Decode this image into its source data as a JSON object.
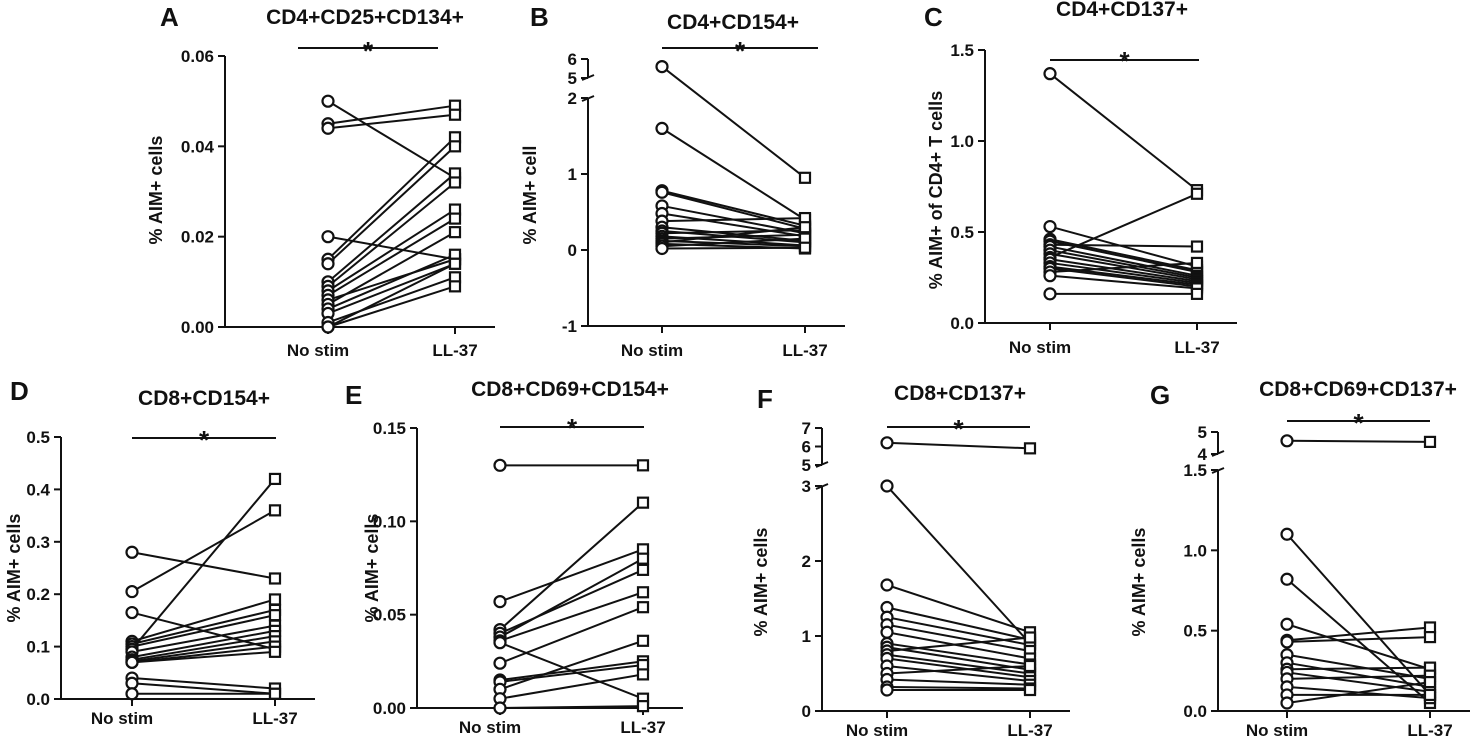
{
  "chart_data": [
    {
      "panel": "A",
      "type": "scatter",
      "title": "CD4+CD25+CD134+",
      "ylabel": "% AIM+ cells",
      "categories": [
        "No stim",
        "LL-37"
      ],
      "ylim": [
        0,
        0.06
      ],
      "yticks": [
        0,
        0.02,
        0.04,
        0.06
      ],
      "ytick_labels": [
        "0.00",
        "0.02",
        "0.04",
        "0.06"
      ],
      "significance": "*",
      "pairs": [
        [
          0.05,
          0.033
        ],
        [
          0.045,
          0.049
        ],
        [
          0.044,
          0.047
        ],
        [
          0.02,
          0.015
        ],
        [
          0.015,
          0.042
        ],
        [
          0.014,
          0.04
        ],
        [
          0.01,
          0.034
        ],
        [
          0.009,
          0.032
        ],
        [
          0.008,
          0.026
        ],
        [
          0.007,
          0.024
        ],
        [
          0.006,
          0.015
        ],
        [
          0.005,
          0.021
        ],
        [
          0.004,
          0.016
        ],
        [
          0.003,
          0.014
        ],
        [
          0.001,
          0.011
        ],
        [
          0.0,
          0.014
        ],
        [
          0.0,
          0.009
        ]
      ]
    },
    {
      "panel": "B",
      "type": "scatter",
      "title": "CD4+CD154+",
      "ylabel": "% AIM+ cell",
      "categories": [
        "No stim",
        "LL-37"
      ],
      "ylim": [
        -1,
        2
      ],
      "yticks": [
        -1,
        0,
        1,
        2
      ],
      "ytick_labels": [
        "-1",
        "0",
        "1",
        "2"
      ],
      "upper_axis": {
        "ylim": [
          5,
          6
        ],
        "yticks": [
          5,
          6
        ],
        "ytick_labels": [
          "5",
          "6"
        ]
      },
      "significance": "*",
      "pairs": [
        [
          5.6,
          0.95
        ],
        [
          1.6,
          0.4
        ],
        [
          0.78,
          0.32
        ],
        [
          0.76,
          0.28
        ],
        [
          0.58,
          0.22
        ],
        [
          0.48,
          0.18
        ],
        [
          0.38,
          0.42
        ],
        [
          0.3,
          0.12
        ],
        [
          0.25,
          0.1
        ],
        [
          0.22,
          0.26
        ],
        [
          0.18,
          0.06
        ],
        [
          0.15,
          0.2
        ],
        [
          0.12,
          0.05
        ],
        [
          0.1,
          0.3
        ],
        [
          0.08,
          0.02
        ],
        [
          0.05,
          0.15
        ],
        [
          0.02,
          0.03
        ]
      ]
    },
    {
      "panel": "C",
      "type": "scatter",
      "title": "CD4+CD137+",
      "ylabel": "% AIM+ of CD4+ T cells",
      "categories": [
        "No stim",
        "LL-37"
      ],
      "ylim": [
        0,
        1.5
      ],
      "yticks": [
        0,
        0.5,
        1.0,
        1.5
      ],
      "ytick_labels": [
        "0.0",
        "0.5",
        "1.0",
        "1.5"
      ],
      "significance": "*",
      "pairs": [
        [
          1.37,
          0.73
        ],
        [
          0.53,
          0.31
        ],
        [
          0.46,
          0.29
        ],
        [
          0.45,
          0.28
        ],
        [
          0.43,
          0.42
        ],
        [
          0.42,
          0.26
        ],
        [
          0.4,
          0.25
        ],
        [
          0.38,
          0.24
        ],
        [
          0.36,
          0.71
        ],
        [
          0.35,
          0.23
        ],
        [
          0.33,
          0.22
        ],
        [
          0.31,
          0.21
        ],
        [
          0.3,
          0.2
        ],
        [
          0.28,
          0.33
        ],
        [
          0.26,
          0.19
        ],
        [
          0.16,
          0.16
        ]
      ]
    },
    {
      "panel": "D",
      "type": "scatter",
      "title": "CD8+CD154+",
      "ylabel": "% AIM+ cells",
      "categories": [
        "No stim",
        "LL-37"
      ],
      "ylim": [
        0,
        0.5
      ],
      "yticks": [
        0,
        0.1,
        0.2,
        0.3,
        0.4,
        0.5
      ],
      "ytick_labels": [
        "0.0",
        "0.1",
        "0.2",
        "0.3",
        "0.4",
        "0.5"
      ],
      "significance": "*",
      "pairs": [
        [
          0.28,
          0.23
        ],
        [
          0.205,
          0.36
        ],
        [
          0.165,
          0.095
        ],
        [
          0.11,
          0.19
        ],
        [
          0.105,
          0.17
        ],
        [
          0.1,
          0.16
        ],
        [
          0.095,
          0.42
        ],
        [
          0.09,
          0.14
        ],
        [
          0.08,
          0.13
        ],
        [
          0.075,
          0.12
        ],
        [
          0.072,
          0.11
        ],
        [
          0.07,
          0.1
        ],
        [
          0.07,
          0.09
        ],
        [
          0.04,
          0.02
        ],
        [
          0.03,
          0.01
        ],
        [
          0.01,
          0.01
        ]
      ]
    },
    {
      "panel": "E",
      "type": "scatter",
      "title": "CD8+CD69+CD154+",
      "ylabel": "% AIM+ cells",
      "categories": [
        "No stim",
        "LL-37"
      ],
      "ylim": [
        0,
        0.15
      ],
      "yticks": [
        0,
        0.05,
        0.1,
        0.15
      ],
      "ytick_labels": [
        "0.00",
        "0.05",
        "0.10",
        "0.15"
      ],
      "significance": "*",
      "pairs": [
        [
          0.13,
          0.13
        ],
        [
          0.057,
          0.085
        ],
        [
          0.042,
          0.11
        ],
        [
          0.04,
          0.074
        ],
        [
          0.038,
          0.08
        ],
        [
          0.036,
          0.062
        ],
        [
          0.035,
          0.005
        ],
        [
          0.024,
          0.054
        ],
        [
          0.015,
          0.025
        ],
        [
          0.014,
          0.023
        ],
        [
          0.01,
          0.036
        ],
        [
          0.005,
          0.018
        ],
        [
          0.0,
          0.001
        ]
      ]
    },
    {
      "panel": "F",
      "type": "scatter",
      "title": "CD8+CD137+",
      "ylabel": "% AIM+ cells",
      "categories": [
        "No stim",
        "LL-37"
      ],
      "ylim": [
        0,
        3
      ],
      "yticks": [
        0,
        1,
        2,
        3
      ],
      "ytick_labels": [
        "0",
        "1",
        "2",
        "3"
      ],
      "upper_axis": {
        "ylim": [
          5,
          7
        ],
        "yticks": [
          5,
          6,
          7
        ],
        "ytick_labels": [
          "5",
          "6",
          "7"
        ]
      },
      "significance": "*",
      "pairs": [
        [
          6.2,
          5.9
        ],
        [
          3.0,
          0.9
        ],
        [
          1.68,
          1.05
        ],
        [
          1.38,
          0.95
        ],
        [
          1.25,
          0.88
        ],
        [
          1.15,
          0.8
        ],
        [
          1.05,
          0.7
        ],
        [
          0.9,
          0.62
        ],
        [
          0.85,
          0.55
        ],
        [
          0.8,
          0.98
        ],
        [
          0.75,
          0.5
        ],
        [
          0.7,
          0.45
        ],
        [
          0.6,
          0.4
        ],
        [
          0.5,
          0.6
        ],
        [
          0.42,
          0.35
        ],
        [
          0.32,
          0.3
        ],
        [
          0.28,
          0.28
        ]
      ]
    },
    {
      "panel": "G",
      "type": "scatter",
      "title": "CD8+CD69+CD137+",
      "ylabel": "% AIM+ cells",
      "categories": [
        "No stim",
        "LL-37"
      ],
      "ylim": [
        0,
        1.5
      ],
      "yticks": [
        0,
        0.5,
        1.0,
        1.5
      ],
      "ytick_labels": [
        "0.0",
        "0.5",
        "1.0",
        "1.5"
      ],
      "upper_axis": {
        "ylim": [
          4,
          5
        ],
        "yticks": [
          4,
          5
        ],
        "ytick_labels": [
          "4",
          "5"
        ]
      },
      "significance": "*",
      "pairs": [
        [
          4.6,
          4.55
        ],
        [
          1.1,
          0.1
        ],
        [
          0.82,
          0.05
        ],
        [
          0.54,
          0.26
        ],
        [
          0.44,
          0.52
        ],
        [
          0.43,
          0.46
        ],
        [
          0.35,
          0.2
        ],
        [
          0.3,
          0.15
        ],
        [
          0.26,
          0.27
        ],
        [
          0.24,
          0.12
        ],
        [
          0.2,
          0.22
        ],
        [
          0.15,
          0.08
        ],
        [
          0.1,
          0.1
        ],
        [
          0.05,
          0.18
        ]
      ]
    }
  ]
}
